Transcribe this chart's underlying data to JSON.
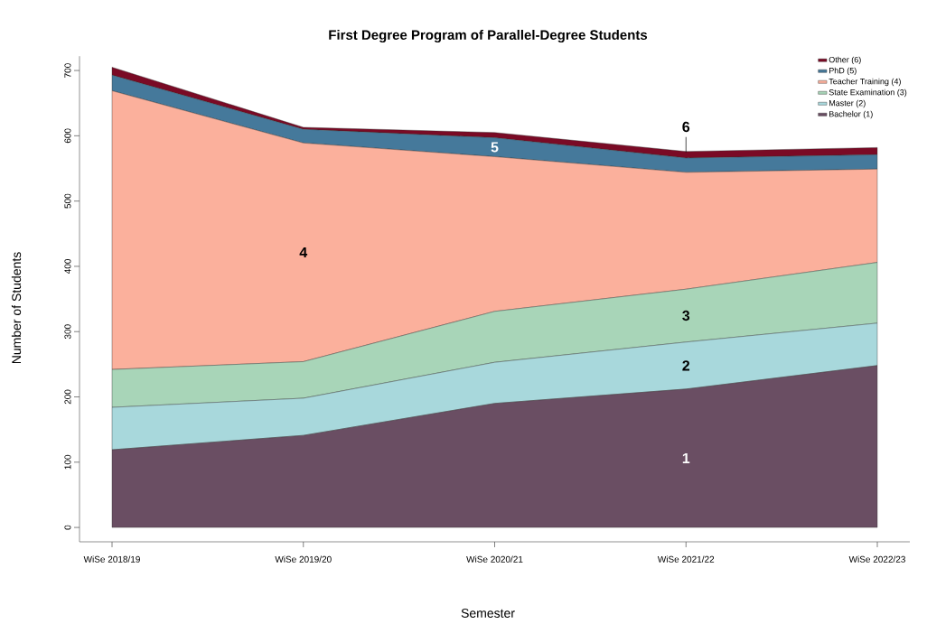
{
  "chart_data": {
    "type": "area",
    "stacked": true,
    "title": "First Degree Program of Parallel-Degree Students",
    "xlabel": "Semester",
    "ylabel": "Number of Students",
    "categories": [
      "WiSe 2018/19",
      "WiSe 2019/20",
      "WiSe 2020/21",
      "WiSe 2021/22",
      "WiSe 2022/23"
    ],
    "series": [
      {
        "name": "Bachelor (1)",
        "color": "#6a4e63",
        "values": [
          119,
          141,
          190,
          212,
          248
        ]
      },
      {
        "name": "Master (2)",
        "color": "#a8d8dc",
        "values": [
          65,
          57,
          63,
          72,
          65
        ]
      },
      {
        "name": "State Examination (3)",
        "color": "#a8d5b8",
        "values": [
          58,
          56,
          78,
          81,
          93
        ]
      },
      {
        "name": "Teacher Training (4)",
        "color": "#fbb09c",
        "values": [
          427,
          335,
          237,
          179,
          143
        ]
      },
      {
        "name": "PhD (5)",
        "color": "#45799b",
        "values": [
          24,
          21,
          29,
          22,
          22
        ]
      },
      {
        "name": "Other (6)",
        "color": "#7a0a25",
        "values": [
          12,
          3,
          8,
          10,
          11
        ]
      }
    ],
    "ylim": [
      -22,
      722
    ],
    "yticks": [
      0,
      100,
      200,
      300,
      400,
      500,
      600,
      700
    ],
    "annotations": [
      "1",
      "2",
      "3",
      "4",
      "5",
      "6"
    ],
    "legend": "top right",
    "grid": false
  }
}
